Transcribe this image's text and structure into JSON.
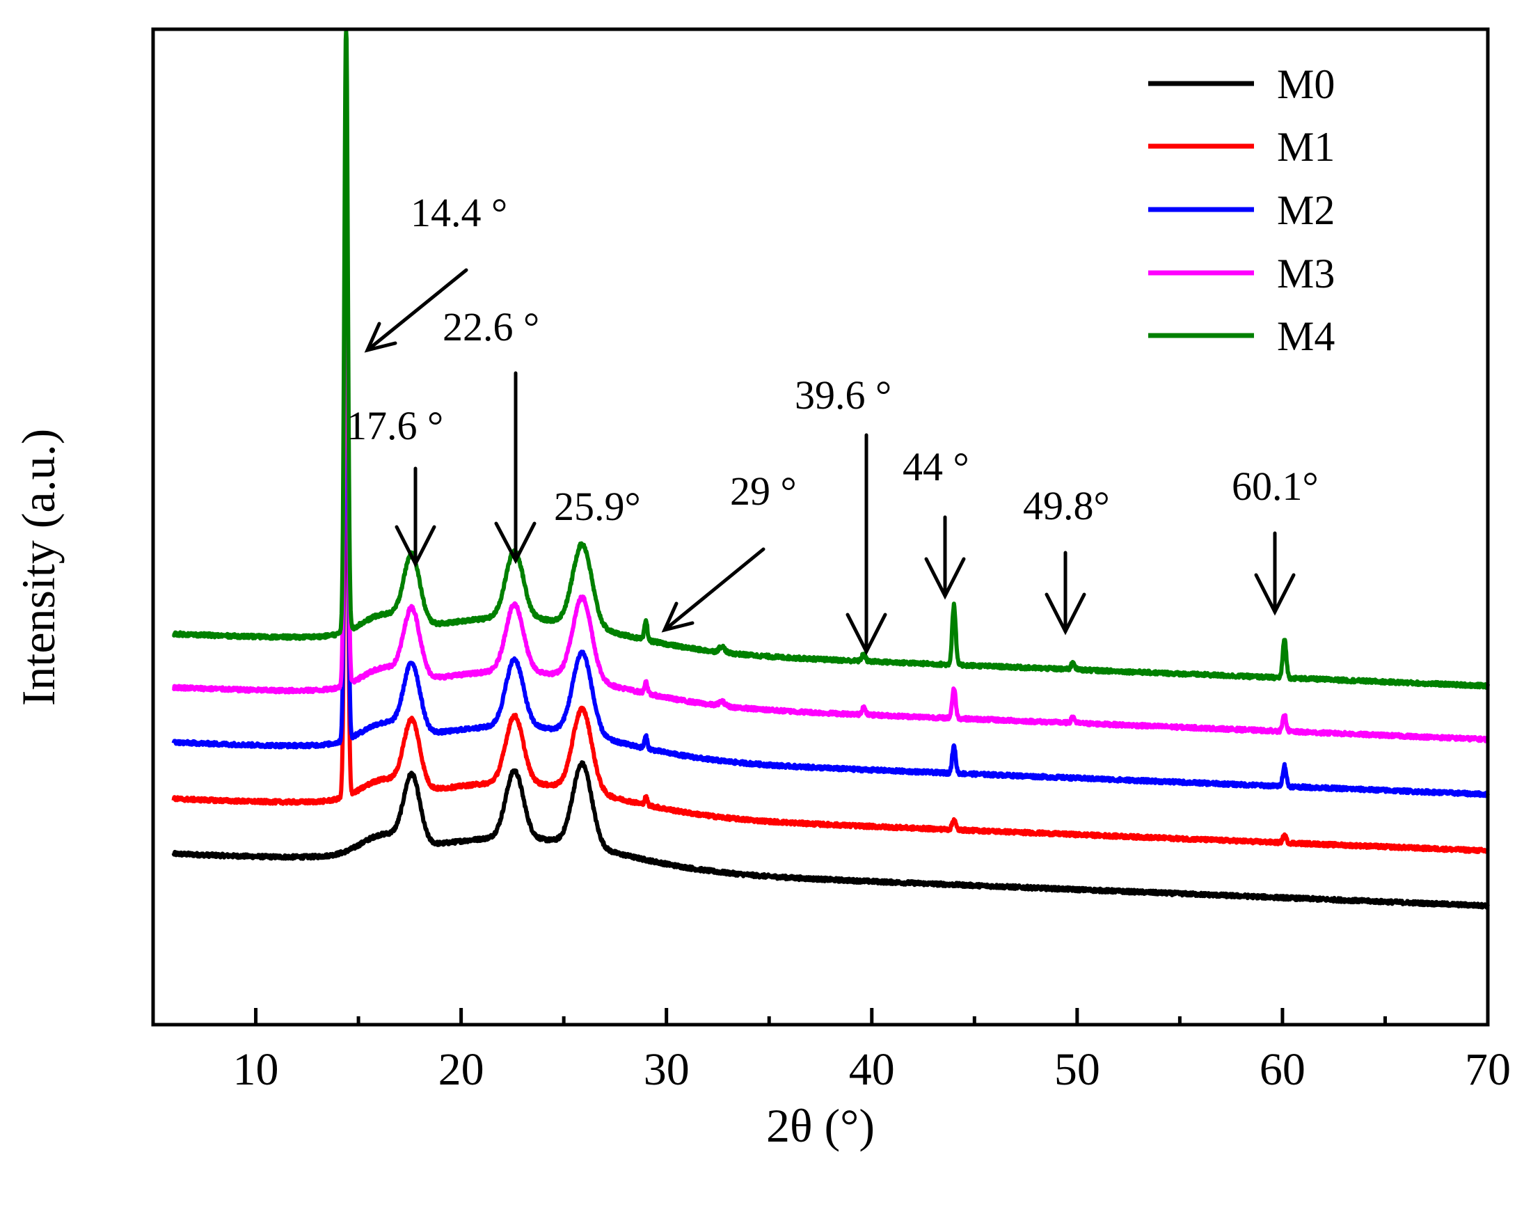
{
  "chart_data": {
    "type": "line",
    "title": "",
    "xlabel": "2θ (°)",
    "ylabel": "Intensity (a.u.)",
    "xlim": [
      5,
      70
    ],
    "ylim": [
      0,
      6.7
    ],
    "xticks": [
      10,
      20,
      30,
      40,
      50,
      60,
      70
    ],
    "xtick_labels": [
      "10",
      "20",
      "30",
      "40",
      "50",
      "60",
      "70"
    ],
    "minor_xticks": [
      15,
      25,
      35,
      45,
      55,
      65
    ],
    "y_ticks_shown": false,
    "grid": false,
    "legend_position": "top-right",
    "x_start": 6,
    "x_end": 70,
    "common_peaks": [
      {
        "x": 17.6,
        "height": 0.45,
        "width": 0.55
      },
      {
        "x": 22.6,
        "height": 0.45,
        "width": 0.6
      },
      {
        "x": 25.9,
        "height": 0.55,
        "width": 0.65
      },
      {
        "x": 16.2,
        "height": 0.12,
        "width": 1.5
      }
    ],
    "series": [
      {
        "name": "M0",
        "color": "#000000",
        "baseline_start": 1.15,
        "baseline_end": 0.8,
        "decay": 0.2,
        "peaks": []
      },
      {
        "name": "M1",
        "color": "#ff0000",
        "baseline_start": 1.52,
        "baseline_end": 1.17,
        "decay": 0.2,
        "peaks": [
          {
            "x": 14.4,
            "height": 3.1,
            "width": 0.12
          },
          {
            "x": 29.0,
            "height": 0.05,
            "width": 0.1
          },
          {
            "x": 44.0,
            "height": 0.07,
            "width": 0.12
          },
          {
            "x": 60.1,
            "height": 0.05,
            "width": 0.12
          }
        ]
      },
      {
        "name": "M2",
        "color": "#0000ff",
        "baseline_start": 1.9,
        "baseline_end": 1.55,
        "decay": 0.2,
        "peaks": [
          {
            "x": 14.4,
            "height": 3.2,
            "width": 0.12
          },
          {
            "x": 29.0,
            "height": 0.08,
            "width": 0.1
          },
          {
            "x": 44.0,
            "height": 0.18,
            "width": 0.12
          },
          {
            "x": 60.1,
            "height": 0.14,
            "width": 0.12
          }
        ]
      },
      {
        "name": "M3",
        "color": "#ff00ff",
        "baseline_start": 2.27,
        "baseline_end": 1.92,
        "decay": 0.2,
        "peaks": [
          {
            "x": 14.4,
            "height": 3.4,
            "width": 0.12
          },
          {
            "x": 29.0,
            "height": 0.08,
            "width": 0.1
          },
          {
            "x": 32.7,
            "height": 0.03,
            "width": 0.2
          },
          {
            "x": 39.6,
            "height": 0.05,
            "width": 0.12
          },
          {
            "x": 44.0,
            "height": 0.2,
            "width": 0.12
          },
          {
            "x": 49.8,
            "height": 0.04,
            "width": 0.12
          },
          {
            "x": 60.1,
            "height": 0.11,
            "width": 0.12
          }
        ]
      },
      {
        "name": "M4",
        "color": "#008000",
        "baseline_start": 2.63,
        "baseline_end": 2.28,
        "decay": 0.2,
        "peaks": [
          {
            "x": 14.4,
            "height": 4.1,
            "width": 0.12
          },
          {
            "x": 29.0,
            "height": 0.13,
            "width": 0.1
          },
          {
            "x": 32.7,
            "height": 0.04,
            "width": 0.2
          },
          {
            "x": 39.6,
            "height": 0.05,
            "width": 0.12
          },
          {
            "x": 44.0,
            "height": 0.4,
            "width": 0.12
          },
          {
            "x": 49.8,
            "height": 0.05,
            "width": 0.12
          },
          {
            "x": 60.1,
            "height": 0.26,
            "width": 0.12
          }
        ]
      }
    ],
    "annotations": [
      {
        "label": "14.4 °",
        "points_to_x": 14.4
      },
      {
        "label": "17.6 °",
        "points_to_x": 17.6
      },
      {
        "label": "22.6 °",
        "points_to_x": 22.6
      },
      {
        "label": "25.9°",
        "points_to_x": 25.9
      },
      {
        "label": "29 °",
        "points_to_x": 29.0
      },
      {
        "label": "39.6 °",
        "points_to_x": 39.6
      },
      {
        "label": "44 °",
        "points_to_x": 44.0
      },
      {
        "label": "49.8°",
        "points_to_x": 49.8
      },
      {
        "label": "60.1°",
        "points_to_x": 60.1
      }
    ]
  }
}
